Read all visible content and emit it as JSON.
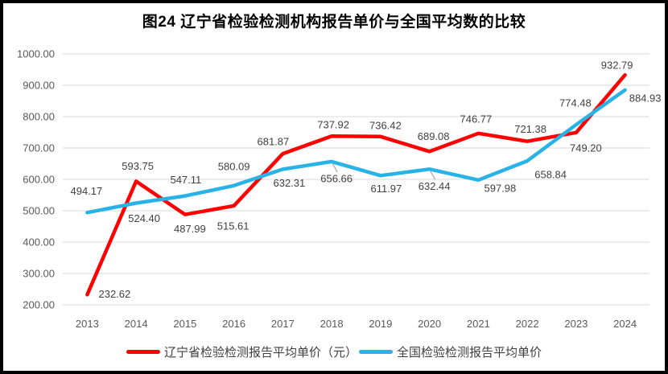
{
  "chart_data": {
    "type": "line",
    "title": "图24 辽宁省检验检测机构报告单价与全国平均数的比较",
    "categories": [
      "2013",
      "2014",
      "2015",
      "2016",
      "2017",
      "2018",
      "2019",
      "2020",
      "2021",
      "2022",
      "2023",
      "2024"
    ],
    "series": [
      {
        "key": "liaoning",
        "name": "辽宁省检验检测报告平均单价（元）",
        "color": "#FF0000",
        "values": [
          232.62,
          593.75,
          487.99,
          515.61,
          681.87,
          737.92,
          736.42,
          689.08,
          746.77,
          721.38,
          749.2,
          932.79
        ],
        "labels": [
          "232.62",
          "593.75",
          "487.99",
          "515.61",
          "681.87",
          "737.92",
          "736.42",
          "689.08",
          "746.77",
          "721.38",
          "749.20",
          "932.79"
        ],
        "label_offsets": [
          [
            34,
            -1
          ],
          [
            2,
            -19
          ],
          [
            6,
            18
          ],
          [
            -1,
            25
          ],
          [
            -12,
            -15
          ],
          [
            2,
            -14
          ],
          [
            6,
            -14
          ],
          [
            5,
            -19
          ],
          [
            -3,
            -18
          ],
          [
            4,
            -15
          ],
          [
            12,
            19
          ],
          [
            -10,
            -12
          ]
        ],
        "leader_indices": []
      },
      {
        "key": "national",
        "name": "全国检验检测报告平均单价",
        "color": "#28B2E6",
        "values": [
          494.17,
          524.4,
          547.11,
          580.09,
          632.31,
          656.66,
          611.97,
          632.44,
          597.98,
          658.84,
          774.48,
          884.93
        ],
        "labels": [
          "494.17",
          "524.40",
          "547.11",
          "580.09",
          "632.31",
          "656.66",
          "611.97",
          "632.44",
          "597.98",
          "658.84",
          "774.48",
          "884.93"
        ],
        "label_offsets": [
          [
            -1,
            -27
          ],
          [
            10,
            19
          ],
          [
            1,
            -20
          ],
          [
            0,
            -24
          ],
          [
            8,
            17
          ],
          [
            6,
            21
          ],
          [
            7,
            16
          ],
          [
            6,
            21
          ],
          [
            27,
            10
          ],
          [
            29,
            17
          ],
          [
            -1,
            -27
          ],
          [
            25,
            10
          ]
        ],
        "leader_indices": [
          5,
          7
        ]
      }
    ],
    "y_axis": {
      "min": 200,
      "max": 1000,
      "step": 100,
      "tick_labels": [
        "1000.00",
        "900.00",
        "800.00",
        "700.00",
        "600.00",
        "500.00",
        "400.00",
        "300.00",
        "200.00"
      ]
    },
    "grid": true,
    "legend_position": "bottom",
    "styles": {
      "gridline_color": "#D9D9D9",
      "axis_text_color": "#595959",
      "data_label_color": "#404040",
      "leader_line_color": "#A6A6A6",
      "frame_border_color": "#000000",
      "background_color": "#FFFFFF"
    }
  }
}
